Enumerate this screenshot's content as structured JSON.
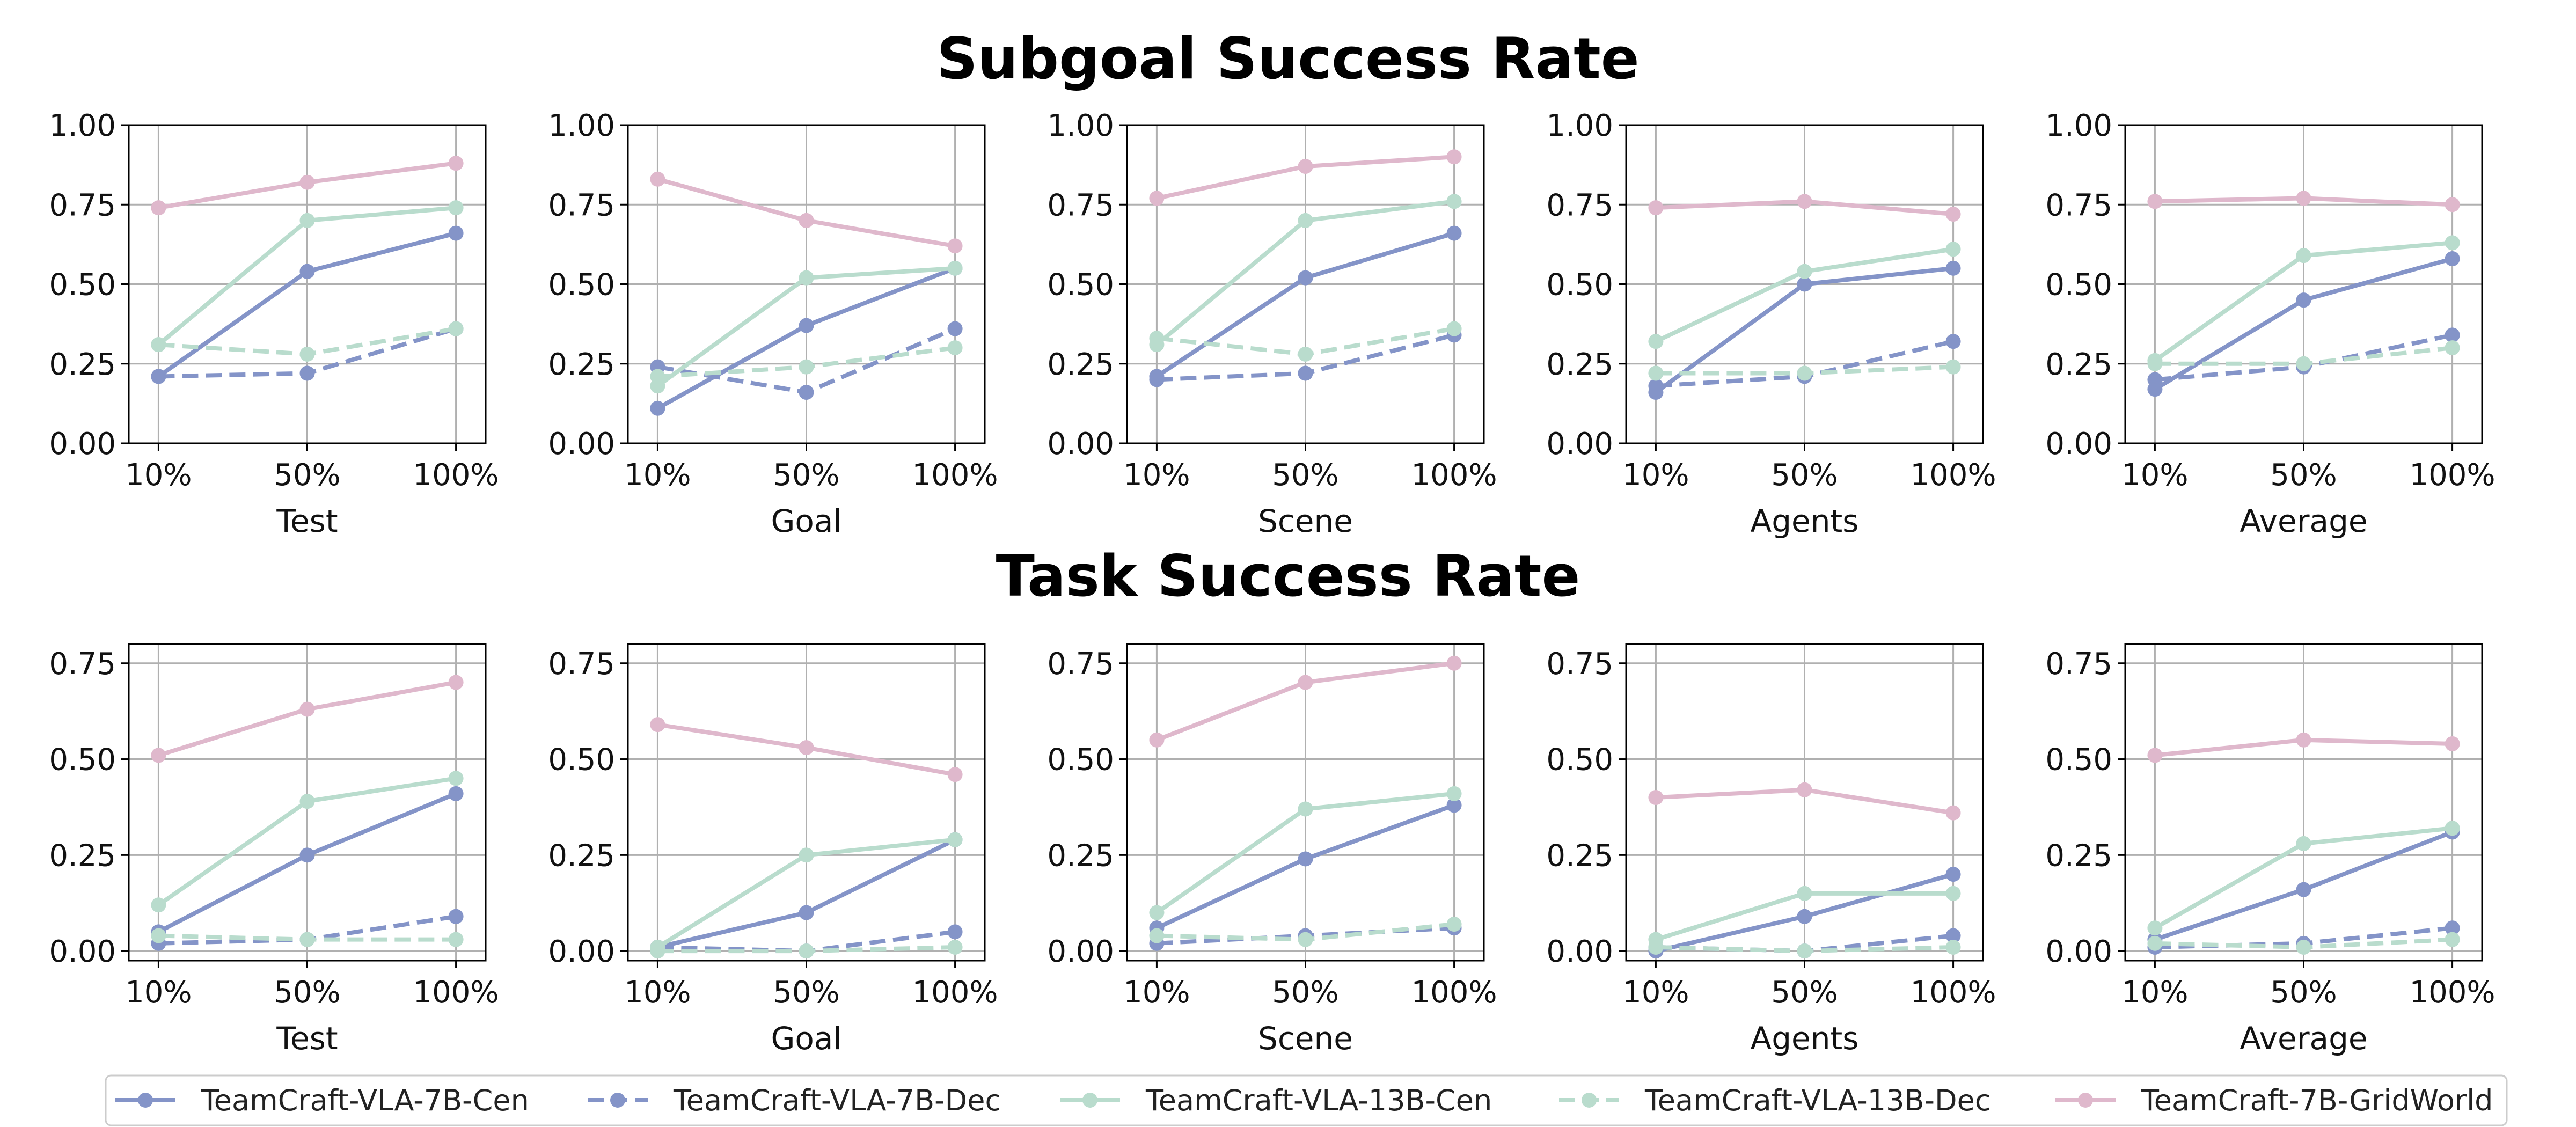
{
  "section_titles": {
    "top": "Subgoal Success Rate",
    "bottom": "Task Success Rate"
  },
  "colors": {
    "TeamCraft-VLA-7B-Cen": "#8494c8",
    "TeamCraft-VLA-7B-Dec": "#8494c8",
    "TeamCraft-VLA-13B-Cen": "#b9dccd",
    "TeamCraft-VLA-13B-Dec": "#b9dccd",
    "TeamCraft-7B-GridWorld": "#dfb8cc",
    "grid": "#b0b0b0",
    "axis": "#000000"
  },
  "legend": {
    "entries": [
      {
        "name": "TeamCraft-VLA-7B-Cen",
        "style": "solid"
      },
      {
        "name": "TeamCraft-VLA-7B-Dec",
        "style": "dashed"
      },
      {
        "name": "TeamCraft-VLA-13B-Cen",
        "style": "solid"
      },
      {
        "name": "TeamCraft-VLA-13B-Dec",
        "style": "dashed"
      },
      {
        "name": "TeamCraft-7B-GridWorld",
        "style": "solid"
      }
    ]
  },
  "chart_data": [
    {
      "type": "line",
      "section": "Subgoal Success Rate",
      "xlabel": "Test",
      "categories": [
        "10%",
        "50%",
        "100%"
      ],
      "ylim": [
        0,
        1.0
      ],
      "yticks": [
        "0.00",
        "0.25",
        "0.50",
        "0.75",
        "1.00"
      ],
      "grid": true,
      "series": [
        {
          "name": "TeamCraft-VLA-7B-Cen",
          "values": [
            0.21,
            0.54,
            0.66
          ]
        },
        {
          "name": "TeamCraft-VLA-7B-Dec",
          "values": [
            0.21,
            0.22,
            0.36
          ]
        },
        {
          "name": "TeamCraft-VLA-13B-Cen",
          "values": [
            0.31,
            0.7,
            0.74
          ]
        },
        {
          "name": "TeamCraft-VLA-13B-Dec",
          "values": [
            0.31,
            0.28,
            0.36
          ]
        },
        {
          "name": "TeamCraft-7B-GridWorld",
          "values": [
            0.74,
            0.82,
            0.88
          ]
        }
      ]
    },
    {
      "type": "line",
      "section": "Subgoal Success Rate",
      "xlabel": "Goal",
      "categories": [
        "10%",
        "50%",
        "100%"
      ],
      "ylim": [
        0,
        1.0
      ],
      "yticks": [
        "0.00",
        "0.25",
        "0.50",
        "0.75",
        "1.00"
      ],
      "grid": true,
      "series": [
        {
          "name": "TeamCraft-VLA-7B-Cen",
          "values": [
            0.11,
            0.37,
            0.55
          ]
        },
        {
          "name": "TeamCraft-VLA-7B-Dec",
          "values": [
            0.24,
            0.16,
            0.36
          ]
        },
        {
          "name": "TeamCraft-VLA-13B-Cen",
          "values": [
            0.18,
            0.52,
            0.55
          ]
        },
        {
          "name": "TeamCraft-VLA-13B-Dec",
          "values": [
            0.21,
            0.24,
            0.3
          ]
        },
        {
          "name": "TeamCraft-7B-GridWorld",
          "values": [
            0.83,
            0.7,
            0.62
          ]
        }
      ]
    },
    {
      "type": "line",
      "section": "Subgoal Success Rate",
      "xlabel": "Scene",
      "categories": [
        "10%",
        "50%",
        "100%"
      ],
      "ylim": [
        0,
        1.0
      ],
      "yticks": [
        "0.00",
        "0.25",
        "0.50",
        "0.75",
        "1.00"
      ],
      "grid": true,
      "series": [
        {
          "name": "TeamCraft-VLA-7B-Cen",
          "values": [
            0.21,
            0.52,
            0.66
          ]
        },
        {
          "name": "TeamCraft-VLA-7B-Dec",
          "values": [
            0.2,
            0.22,
            0.34
          ]
        },
        {
          "name": "TeamCraft-VLA-13B-Cen",
          "values": [
            0.31,
            0.7,
            0.76
          ]
        },
        {
          "name": "TeamCraft-VLA-13B-Dec",
          "values": [
            0.33,
            0.28,
            0.36
          ]
        },
        {
          "name": "TeamCraft-7B-GridWorld",
          "values": [
            0.77,
            0.87,
            0.9
          ]
        }
      ]
    },
    {
      "type": "line",
      "section": "Subgoal Success Rate",
      "xlabel": "Agents",
      "categories": [
        "10%",
        "50%",
        "100%"
      ],
      "ylim": [
        0,
        1.0
      ],
      "yticks": [
        "0.00",
        "0.25",
        "0.50",
        "0.75",
        "1.00"
      ],
      "grid": true,
      "series": [
        {
          "name": "TeamCraft-VLA-7B-Cen",
          "values": [
            0.16,
            0.5,
            0.55
          ]
        },
        {
          "name": "TeamCraft-VLA-7B-Dec",
          "values": [
            0.18,
            0.21,
            0.32
          ]
        },
        {
          "name": "TeamCraft-VLA-13B-Cen",
          "values": [
            0.32,
            0.54,
            0.61
          ]
        },
        {
          "name": "TeamCraft-VLA-13B-Dec",
          "values": [
            0.22,
            0.22,
            0.24
          ]
        },
        {
          "name": "TeamCraft-7B-GridWorld",
          "values": [
            0.74,
            0.76,
            0.72
          ]
        }
      ]
    },
    {
      "type": "line",
      "section": "Subgoal Success Rate",
      "xlabel": "Average",
      "categories": [
        "10%",
        "50%",
        "100%"
      ],
      "ylim": [
        0,
        1.0
      ],
      "yticks": [
        "0.00",
        "0.25",
        "0.50",
        "0.75",
        "1.00"
      ],
      "grid": true,
      "series": [
        {
          "name": "TeamCraft-VLA-7B-Cen",
          "values": [
            0.17,
            0.45,
            0.58
          ]
        },
        {
          "name": "TeamCraft-VLA-7B-Dec",
          "values": [
            0.2,
            0.24,
            0.34
          ]
        },
        {
          "name": "TeamCraft-VLA-13B-Cen",
          "values": [
            0.26,
            0.59,
            0.63
          ]
        },
        {
          "name": "TeamCraft-VLA-13B-Dec",
          "values": [
            0.25,
            0.25,
            0.3
          ]
        },
        {
          "name": "TeamCraft-7B-GridWorld",
          "values": [
            0.76,
            0.77,
            0.75
          ]
        }
      ]
    },
    {
      "type": "line",
      "section": "Task Success Rate",
      "xlabel": "Test",
      "categories": [
        "10%",
        "50%",
        "100%"
      ],
      "ylim": [
        -0.025,
        0.8
      ],
      "yticks": [
        "0.00",
        "0.25",
        "0.50",
        "0.75"
      ],
      "grid": true,
      "series": [
        {
          "name": "TeamCraft-VLA-7B-Cen",
          "values": [
            0.05,
            0.25,
            0.41
          ]
        },
        {
          "name": "TeamCraft-VLA-7B-Dec",
          "values": [
            0.02,
            0.03,
            0.09
          ]
        },
        {
          "name": "TeamCraft-VLA-13B-Cen",
          "values": [
            0.12,
            0.39,
            0.45
          ]
        },
        {
          "name": "TeamCraft-VLA-13B-Dec",
          "values": [
            0.04,
            0.03,
            0.03
          ]
        },
        {
          "name": "TeamCraft-7B-GridWorld",
          "values": [
            0.51,
            0.63,
            0.7
          ]
        }
      ]
    },
    {
      "type": "line",
      "section": "Task Success Rate",
      "xlabel": "Goal",
      "categories": [
        "10%",
        "50%",
        "100%"
      ],
      "ylim": [
        -0.025,
        0.8
      ],
      "yticks": [
        "0.00",
        "0.25",
        "0.50",
        "0.75"
      ],
      "grid": true,
      "series": [
        {
          "name": "TeamCraft-VLA-7B-Cen",
          "values": [
            0.01,
            0.1,
            0.29
          ]
        },
        {
          "name": "TeamCraft-VLA-7B-Dec",
          "values": [
            0.01,
            0.0,
            0.05
          ]
        },
        {
          "name": "TeamCraft-VLA-13B-Cen",
          "values": [
            0.01,
            0.25,
            0.29
          ]
        },
        {
          "name": "TeamCraft-VLA-13B-Dec",
          "values": [
            0.0,
            0.0,
            0.01
          ]
        },
        {
          "name": "TeamCraft-7B-GridWorld",
          "values": [
            0.59,
            0.53,
            0.46
          ]
        }
      ]
    },
    {
      "type": "line",
      "section": "Task Success Rate",
      "xlabel": "Scene",
      "categories": [
        "10%",
        "50%",
        "100%"
      ],
      "ylim": [
        -0.025,
        0.8
      ],
      "yticks": [
        "0.00",
        "0.25",
        "0.50",
        "0.75"
      ],
      "grid": true,
      "series": [
        {
          "name": "TeamCraft-VLA-7B-Cen",
          "values": [
            0.06,
            0.24,
            0.38
          ]
        },
        {
          "name": "TeamCraft-VLA-7B-Dec",
          "values": [
            0.02,
            0.04,
            0.06
          ]
        },
        {
          "name": "TeamCraft-VLA-13B-Cen",
          "values": [
            0.1,
            0.37,
            0.41
          ]
        },
        {
          "name": "TeamCraft-VLA-13B-Dec",
          "values": [
            0.04,
            0.03,
            0.07
          ]
        },
        {
          "name": "TeamCraft-7B-GridWorld",
          "values": [
            0.55,
            0.7,
            0.75
          ]
        }
      ]
    },
    {
      "type": "line",
      "section": "Task Success Rate",
      "xlabel": "Agents",
      "categories": [
        "10%",
        "50%",
        "100%"
      ],
      "ylim": [
        -0.025,
        0.8
      ],
      "yticks": [
        "0.00",
        "0.25",
        "0.50",
        "0.75"
      ],
      "grid": true,
      "series": [
        {
          "name": "TeamCraft-VLA-7B-Cen",
          "values": [
            0.0,
            0.09,
            0.2
          ]
        },
        {
          "name": "TeamCraft-VLA-7B-Dec",
          "values": [
            0.01,
            0.0,
            0.04
          ]
        },
        {
          "name": "TeamCraft-VLA-13B-Cen",
          "values": [
            0.03,
            0.15,
            0.15
          ]
        },
        {
          "name": "TeamCraft-VLA-13B-Dec",
          "values": [
            0.01,
            0.0,
            0.01
          ]
        },
        {
          "name": "TeamCraft-7B-GridWorld",
          "values": [
            0.4,
            0.42,
            0.36
          ]
        }
      ]
    },
    {
      "type": "line",
      "section": "Task Success Rate",
      "xlabel": "Average",
      "categories": [
        "10%",
        "50%",
        "100%"
      ],
      "ylim": [
        -0.025,
        0.8
      ],
      "yticks": [
        "0.00",
        "0.25",
        "0.50",
        "0.75"
      ],
      "grid": true,
      "series": [
        {
          "name": "TeamCraft-VLA-7B-Cen",
          "values": [
            0.03,
            0.16,
            0.31
          ]
        },
        {
          "name": "TeamCraft-VLA-7B-Dec",
          "values": [
            0.01,
            0.02,
            0.06
          ]
        },
        {
          "name": "TeamCraft-VLA-13B-Cen",
          "values": [
            0.06,
            0.28,
            0.32
          ]
        },
        {
          "name": "TeamCraft-VLA-13B-Dec",
          "values": [
            0.02,
            0.01,
            0.03
          ]
        },
        {
          "name": "TeamCraft-7B-GridWorld",
          "values": [
            0.51,
            0.55,
            0.54
          ]
        }
      ]
    }
  ]
}
